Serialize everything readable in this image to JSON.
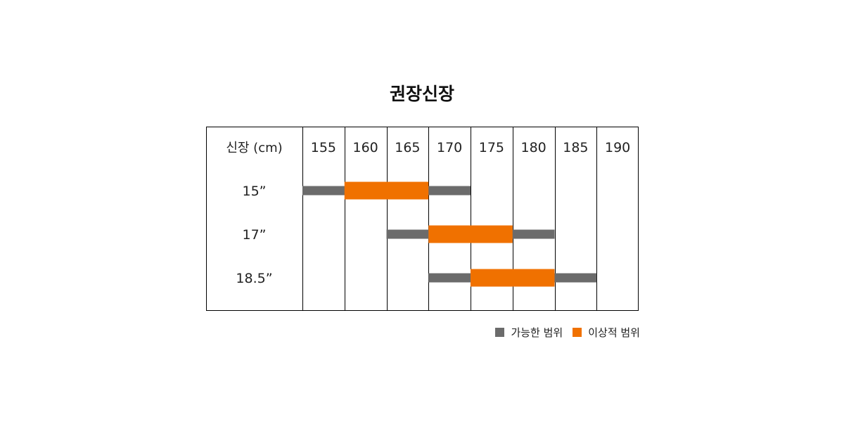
{
  "chart_data": {
    "type": "range-bar",
    "title": "권장신장",
    "corner_label": "신장 (cm)",
    "x_ticks": [
      155,
      160,
      165,
      170,
      175,
      180,
      185,
      190
    ],
    "rows": [
      {
        "label": "15”",
        "possible": [
          155,
          175
        ],
        "ideal": [
          160,
          170
        ]
      },
      {
        "label": "17”",
        "possible": [
          165,
          185
        ],
        "ideal": [
          170,
          180
        ]
      },
      {
        "label": "18.5”",
        "possible": [
          170,
          190
        ],
        "ideal": [
          175,
          185
        ]
      }
    ],
    "legend": [
      {
        "key": "possible",
        "label": "가능한 범위",
        "color": "#6b6b6b"
      },
      {
        "key": "ideal",
        "label": "이상적 범위",
        "color": "#f07100"
      }
    ],
    "colors": {
      "possible": "#6b6b6b",
      "ideal": "#f07100",
      "grid": "#000000"
    }
  }
}
